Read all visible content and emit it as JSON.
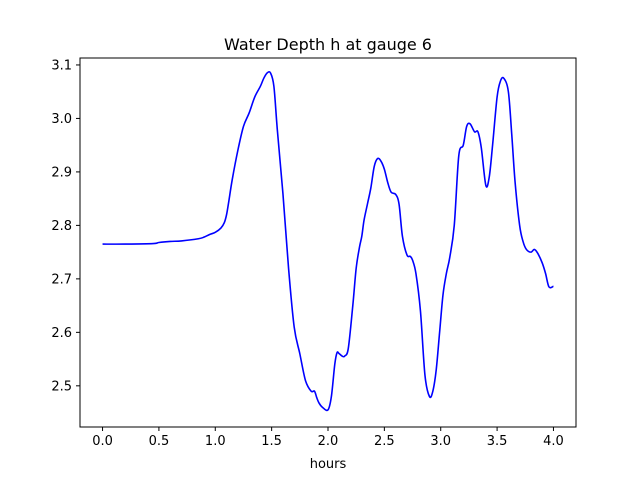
{
  "chart_data": {
    "type": "line",
    "title": "Water Depth h at gauge 6",
    "xlabel": "hours",
    "ylabel": "",
    "xlim": [
      -0.2,
      4.2
    ],
    "ylim": [
      2.423,
      3.113
    ],
    "xticks": [
      0.0,
      0.5,
      1.0,
      1.5,
      2.0,
      2.5,
      3.0,
      3.5,
      4.0
    ],
    "xtick_labels": [
      "0.0",
      "0.5",
      "1.0",
      "1.5",
      "2.0",
      "2.5",
      "3.0",
      "3.5",
      "4.0"
    ],
    "yticks": [
      2.5,
      2.6,
      2.7,
      2.8,
      2.9,
      3.0,
      3.1
    ],
    "ytick_labels": [
      "2.5",
      "2.6",
      "2.7",
      "2.8",
      "2.9",
      "3.0",
      "3.1"
    ],
    "grid": false,
    "series": [
      {
        "color": "#0000ff",
        "x": [
          0.0,
          0.2,
          0.45,
          0.5,
          0.6,
          0.7,
          0.85,
          0.9,
          0.95,
          1.0,
          1.05,
          1.08,
          1.1,
          1.12,
          1.15,
          1.2,
          1.25,
          1.3,
          1.35,
          1.4,
          1.43,
          1.46,
          1.49,
          1.52,
          1.55,
          1.6,
          1.65,
          1.7,
          1.75,
          1.8,
          1.85,
          1.88,
          1.9,
          1.92,
          1.95,
          2.0,
          2.03,
          2.06,
          2.08,
          2.1,
          2.13,
          2.15,
          2.18,
          2.22,
          2.25,
          2.28,
          2.3,
          2.32,
          2.35,
          2.38,
          2.41,
          2.44,
          2.47,
          2.5,
          2.53,
          2.56,
          2.6,
          2.63,
          2.66,
          2.7,
          2.73,
          2.75,
          2.78,
          2.82,
          2.86,
          2.9,
          2.93,
          2.96,
          2.99,
          3.02,
          3.05,
          3.08,
          3.12,
          3.16,
          3.2,
          3.23,
          3.26,
          3.3,
          3.33,
          3.36,
          3.4,
          3.43,
          3.46,
          3.5,
          3.53,
          3.56,
          3.6,
          3.63,
          3.66,
          3.7,
          3.73,
          3.76,
          3.8,
          3.83,
          3.86,
          3.9,
          3.93,
          3.96,
          4.0
        ],
        "y": [
          2.765,
          2.765,
          2.766,
          2.768,
          2.77,
          2.771,
          2.775,
          2.778,
          2.783,
          2.787,
          2.795,
          2.805,
          2.82,
          2.845,
          2.885,
          2.94,
          2.985,
          3.01,
          3.04,
          3.06,
          3.075,
          3.085,
          3.085,
          3.06,
          2.98,
          2.86,
          2.72,
          2.61,
          2.56,
          2.51,
          2.49,
          2.49,
          2.478,
          2.468,
          2.46,
          2.455,
          2.48,
          2.54,
          2.562,
          2.56,
          2.555,
          2.556,
          2.57,
          2.65,
          2.72,
          2.76,
          2.78,
          2.81,
          2.84,
          2.87,
          2.91,
          2.925,
          2.92,
          2.905,
          2.88,
          2.862,
          2.858,
          2.84,
          2.78,
          2.745,
          2.742,
          2.735,
          2.71,
          2.64,
          2.52,
          2.48,
          2.49,
          2.53,
          2.6,
          2.67,
          2.71,
          2.74,
          2.8,
          2.93,
          2.95,
          2.985,
          2.99,
          2.975,
          2.975,
          2.945,
          2.875,
          2.89,
          2.95,
          3.04,
          3.07,
          3.075,
          3.05,
          2.97,
          2.88,
          2.8,
          2.77,
          2.755,
          2.75,
          2.755,
          2.748,
          2.73,
          2.71,
          2.685,
          2.686
        ]
      }
    ]
  }
}
